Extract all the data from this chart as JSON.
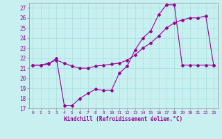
{
  "xlabel": "Windchill (Refroidissement éolien,°C)",
  "bg_color": "#c8f0f0",
  "line_color": "#990099",
  "xlim": [
    -0.5,
    23.5
  ],
  "ylim": [
    17,
    27.5
  ],
  "xticks": [
    0,
    1,
    2,
    3,
    4,
    5,
    6,
    7,
    8,
    9,
    10,
    11,
    12,
    13,
    14,
    15,
    16,
    17,
    18,
    19,
    20,
    21,
    22,
    23
  ],
  "yticks": [
    17,
    18,
    19,
    20,
    21,
    22,
    23,
    24,
    25,
    26,
    27
  ],
  "line1_x": [
    0,
    1,
    2,
    3,
    4,
    5,
    6,
    7,
    8,
    9,
    10,
    11,
    12,
    13,
    14,
    15,
    16,
    17,
    18,
    19,
    20,
    21,
    22,
    23
  ],
  "line1_y": [
    21.3,
    21.3,
    21.5,
    21.8,
    21.5,
    21.2,
    21.0,
    21.0,
    21.2,
    21.3,
    21.4,
    21.5,
    21.8,
    22.3,
    23.0,
    23.5,
    24.2,
    25.0,
    25.5,
    25.8,
    26.0,
    26.0,
    26.2,
    21.3
  ],
  "line2_x": [
    0,
    1,
    2,
    3,
    4,
    5,
    6,
    7,
    8,
    9,
    10,
    11,
    12,
    13,
    14,
    15,
    16,
    17,
    18,
    19,
    20,
    21,
    22,
    23
  ],
  "line2_y": [
    21.3,
    21.3,
    21.4,
    22.0,
    17.3,
    17.3,
    18.0,
    18.5,
    18.9,
    18.8,
    18.8,
    20.5,
    21.2,
    22.8,
    24.0,
    24.7,
    26.3,
    27.3,
    27.3,
    21.3,
    21.3,
    21.3,
    21.3,
    21.3
  ]
}
